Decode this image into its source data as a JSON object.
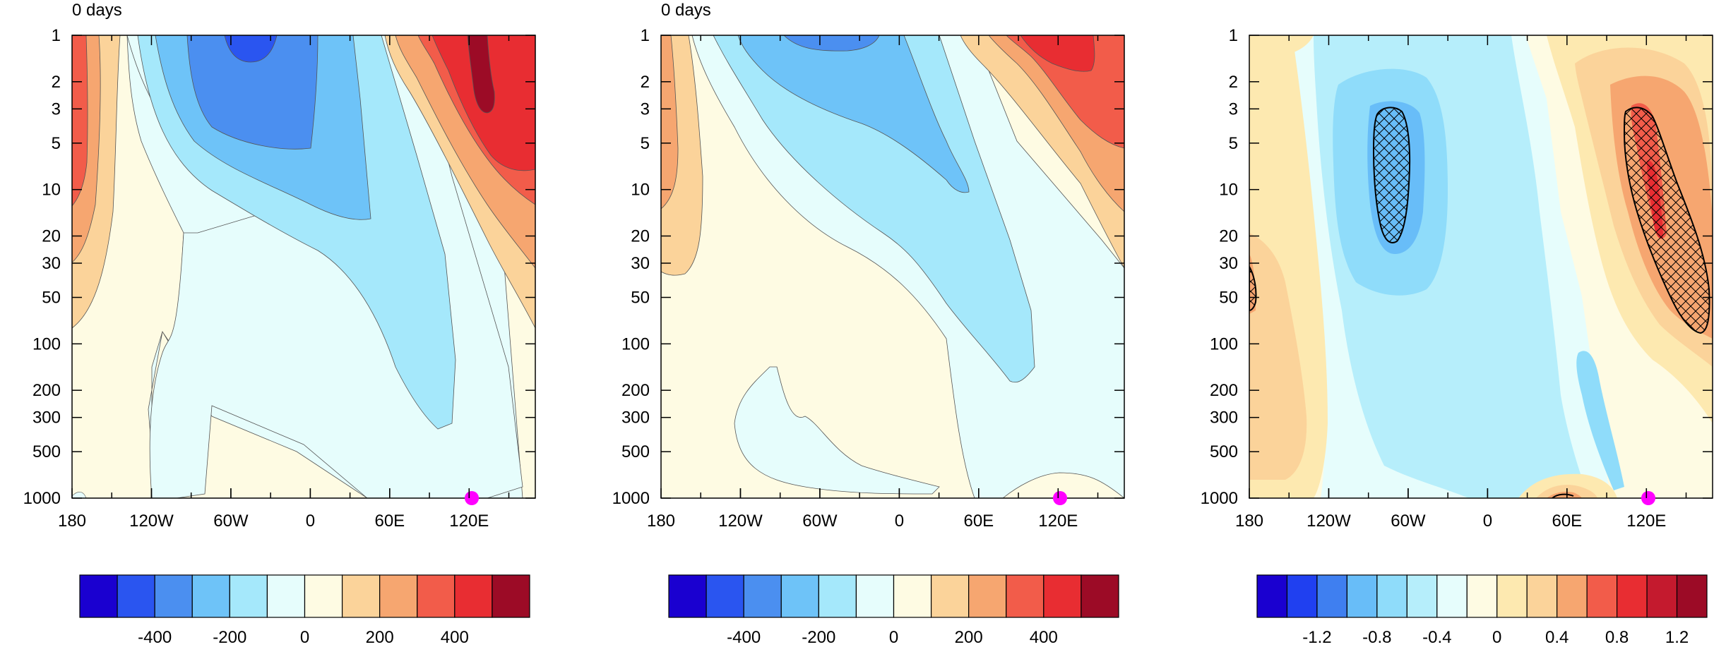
{
  "figure": {
    "panels": [
      {
        "id": "left",
        "title": "0 days",
        "colorbar": {
          "colors": [
            "#1a00d0",
            "#2a55f0",
            "#4b8ff0",
            "#6ec3f8",
            "#a5e8fb",
            "#e6fdfc",
            "#fefbe3",
            "#fbd39a",
            "#f6a670",
            "#f25c4a",
            "#e82d32",
            "#9c0b26"
          ],
          "labels": [
            "-400",
            "-200",
            "0",
            "200",
            "400"
          ]
        }
      },
      {
        "id": "middle",
        "title": "0 days",
        "colorbar": {
          "colors": [
            "#1a00d0",
            "#2a55f0",
            "#4b8ff0",
            "#6ec3f8",
            "#a5e8fb",
            "#e6fdfc",
            "#fefbe3",
            "#fbd39a",
            "#f6a670",
            "#f25c4a",
            "#e82d32",
            "#9c0b26"
          ],
          "labels": [
            "-400",
            "-200",
            "0",
            "200",
            "400"
          ]
        }
      },
      {
        "id": "right",
        "title": "",
        "colorbar": {
          "colors": [
            "#1a00d0",
            "#2040f0",
            "#3f7ff0",
            "#68bdf8",
            "#8fdcfa",
            "#b6eefb",
            "#e6fdfc",
            "#fefbe3",
            "#fde9b0",
            "#fbd39a",
            "#f6a670",
            "#f25c4a",
            "#e82d32",
            "#c41a2e",
            "#9c0b26"
          ],
          "labels": [
            "-1.2",
            "-0.8",
            "-0.4",
            "0",
            "0.4",
            "0.8",
            "1.2"
          ]
        }
      }
    ]
  },
  "chart_data": [
    {
      "type": "heatmap",
      "title": "0 days",
      "x_ticks": [
        "180",
        "120W",
        "60W",
        "0",
        "60E",
        "120E"
      ],
      "y_ticks": [
        "1",
        "2",
        "3",
        "5",
        "10",
        "20",
        "30",
        "50",
        "100",
        "200",
        "300",
        "500",
        "1000"
      ],
      "y_scale": "log",
      "y_reversed": true,
      "colorbar_levels": [
        -500,
        -400,
        -300,
        -200,
        -100,
        0,
        100,
        200,
        300,
        400,
        500
      ],
      "colorbar_labels": [
        "-400",
        "-200",
        "0",
        "200",
        "400"
      ],
      "marker": {
        "lon": "~127E",
        "level": 1000,
        "color": "#ff00ff"
      }
    },
    {
      "type": "heatmap",
      "title": "0 days",
      "x_ticks": [
        "180",
        "120W",
        "60W",
        "0",
        "60E",
        "120E"
      ],
      "y_ticks": [
        "1",
        "2",
        "3",
        "5",
        "10",
        "20",
        "30",
        "50",
        "100",
        "200",
        "300",
        "500",
        "1000"
      ],
      "y_scale": "log",
      "y_reversed": true,
      "colorbar_levels": [
        -500,
        -400,
        -300,
        -200,
        -100,
        0,
        100,
        200,
        300,
        400,
        500
      ],
      "colorbar_labels": [
        "-400",
        "-200",
        "0",
        "200",
        "400"
      ],
      "marker": {
        "lon": "~127E",
        "level": 1000,
        "color": "#ff00ff"
      }
    },
    {
      "type": "heatmap",
      "title": "",
      "x_ticks": [
        "180",
        "120W",
        "60W",
        "0",
        "60E",
        "120E"
      ],
      "y_ticks": [
        "1",
        "2",
        "3",
        "5",
        "10",
        "20",
        "30",
        "50",
        "100",
        "200",
        "300",
        "500",
        "1000"
      ],
      "y_scale": "log",
      "y_reversed": true,
      "colorbar_levels": [
        -1.4,
        -1.2,
        -1.0,
        -0.8,
        -0.6,
        -0.4,
        -0.2,
        0,
        0.2,
        0.4,
        0.6,
        0.8,
        1.0,
        1.2,
        1.4
      ],
      "colorbar_labels": [
        "-1.2",
        "-0.8",
        "-0.4",
        "0",
        "0.4",
        "0.8",
        "1.2"
      ],
      "hatched_regions": [
        "near 70W at 3-20 hPa",
        "near 130E at 3-80 hPa"
      ],
      "marker": {
        "lon": "~127E",
        "level": 1000,
        "color": "#ff00ff"
      }
    }
  ]
}
